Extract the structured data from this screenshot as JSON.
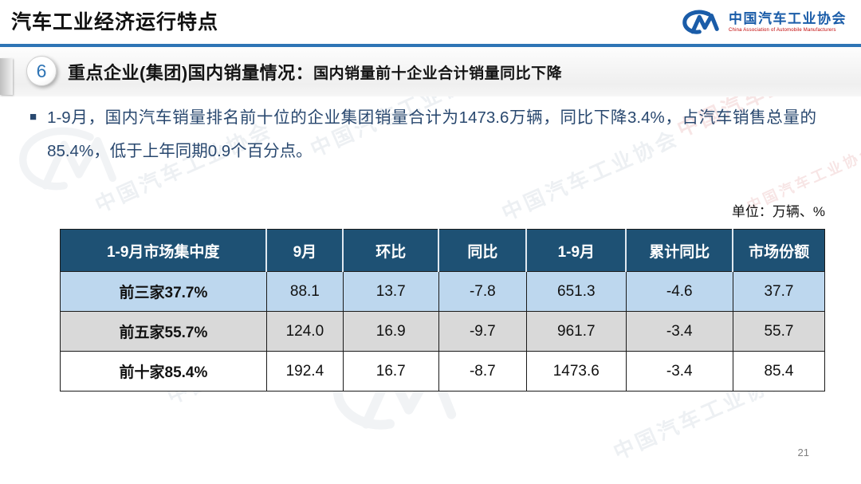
{
  "slide": {
    "title": "汽车工业经济运行特点",
    "page_number": "21"
  },
  "logo": {
    "glyph": "CM",
    "org_cn": "中国汽车工业协会",
    "org_en": "China Association of Automobile Manufacturers"
  },
  "section": {
    "number": "6",
    "heading_main": "重点企业(集团)国内销量情况：",
    "heading_sub": "国内销量前十企业合计销量同比下降"
  },
  "body": {
    "bullet_marker": "■",
    "bullet_text": "1-9月，国内汽车销量排名前十位的企业集团销量合计为1473.6万辆，同比下降3.4%，占汽车销售总量的85.4%，低于上年同期0.9个百分点。"
  },
  "table": {
    "unit_label": "单位：万辆、%",
    "headers": [
      "1-9月市场集中度",
      "9月",
      "环比",
      "同比",
      "1-9月",
      "累计同比",
      "市场份额"
    ],
    "rows": [
      [
        "前三家37.7%",
        "88.1",
        "13.7",
        "-7.8",
        "651.3",
        "-4.6",
        "37.7"
      ],
      [
        "前五家55.7%",
        "124.0",
        "16.9",
        "-9.7",
        "961.7",
        "-3.4",
        "55.7"
      ],
      [
        "前十家85.4%",
        "192.4",
        "16.7",
        "-8.7",
        "1473.6",
        "-3.4",
        "85.4"
      ]
    ]
  },
  "watermark": {
    "text": "中国汽车工业协会"
  },
  "colors": {
    "accent_blue": "#2E74B5",
    "table_header_bg": "#1E5174",
    "row_light_blue": "#BDD7EE",
    "row_light_gray": "#D9D9D9",
    "body_text_navy": "#29486F",
    "logo_blue": "#1A5CA8",
    "logo_red": "#C00000"
  }
}
